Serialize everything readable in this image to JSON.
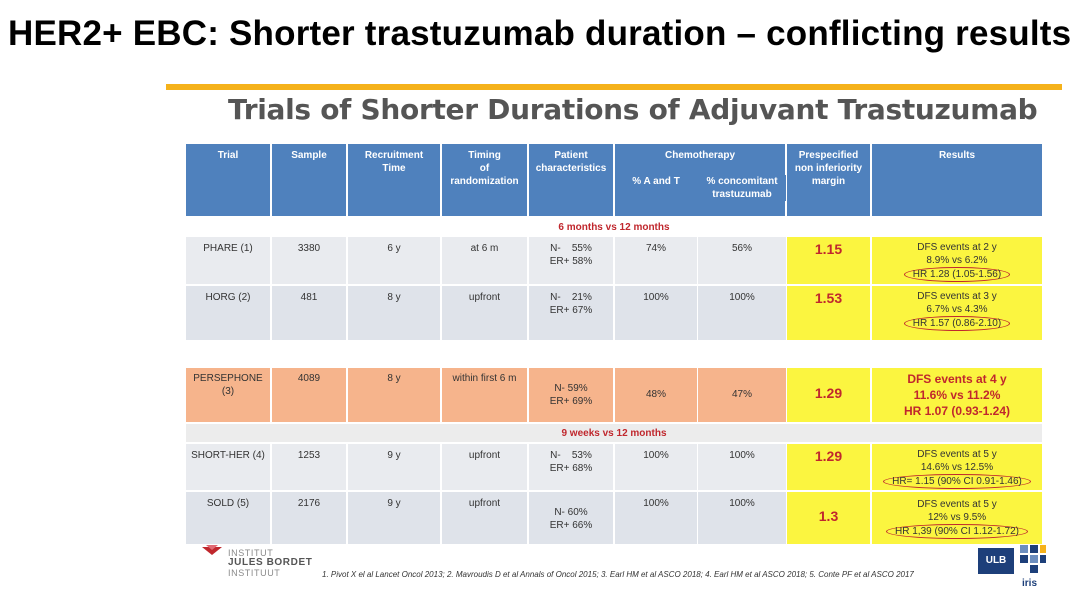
{
  "page_title": "HER2+ EBC: Shorter trastuzumab duration – conflicting results",
  "slide_title": "Trials of Shorter Durations of Adjuvant Trastuzumab",
  "header": {
    "trial": "Trial",
    "sample": "Sample",
    "recruitment": "Recruitment\nTime",
    "timing": "Timing\nof\nrandomization",
    "patient": "Patient\ncharacteristics",
    "chemo": "Chemotherapy",
    "chemo_at": "% A and T",
    "chemo_concomitant": "% concomitant\ntrastuzumab",
    "margin": "Prespecified\nnon inferiority\nmargin",
    "results": "Results"
  },
  "band_1": "6 months vs 12 months",
  "band_2": "9 weeks vs 12 months",
  "rows": {
    "phare": {
      "trial": "PHARE (1)",
      "sample": "3380",
      "recruitment": "6 y",
      "timing": "at 6 m",
      "patient": "N-    55%\nER+ 58%",
      "at": "74%",
      "concomitant": "56%",
      "margin": "1.15",
      "res_line1": "DFS events at 2 y",
      "res_line2": "8.9% vs 6.2%",
      "res_hr": "HR 1.28 (1.05-1.56)"
    },
    "horg": {
      "trial": "HORG (2)",
      "sample": "481",
      "recruitment": "8 y",
      "timing": "upfront",
      "patient": "N-    21%\nER+ 67%",
      "at": "100%",
      "concomitant": "100%",
      "margin": "1.53",
      "res_line1": "DFS events at 3 y",
      "res_line2": "6.7% vs 4.3%",
      "res_hr": "HR 1.57 (0.86-2.10)"
    },
    "persephone": {
      "trial": "PERSEPHONE\n(3)",
      "sample": "4089",
      "recruitment": "8 y",
      "timing": "within first 6 m",
      "patient": "N- 59%\nER+ 69%",
      "at": "48%",
      "concomitant": "47%",
      "margin": "1.29",
      "res_line1": "DFS events at 4 y",
      "res_line2": "11.6% vs 11.2%",
      "res_hr": "HR 1.07 (0.93-1.24)"
    },
    "shorther": {
      "trial": "SHORT-HER (4)",
      "sample": "1253",
      "recruitment": "9 y",
      "timing": "upfront",
      "patient": "N-    53%\nER+ 68%",
      "at": "100%",
      "concomitant": "100%",
      "margin": "1.29",
      "res_line1": "DFS events at 5 y",
      "res_line2": "14.6% vs 12.5%",
      "res_hr": "HR= 1.15 (90% CI 0.91-1.46)"
    },
    "sold": {
      "trial": "SOLD (5)",
      "sample": "2176",
      "recruitment": "9 y",
      "timing": "upfront",
      "patient": "N- 60%\nER+ 66%",
      "at": "100%",
      "concomitant": "100%",
      "margin": "1.3",
      "res_line1": "DFS events at 5 y",
      "res_line2": "12% vs 9.5%",
      "res_hr": "HR 1,39 (90% CI 1.12-1.72)"
    }
  },
  "footer": {
    "institute_line1": "INSTITUT",
    "institute_line2": "JULES BORDET",
    "institute_line3": "INSTITUUT",
    "references": "1. Pivot X el al Lancet Oncol 2013; 2.  Mavroudis D et al Annals of Oncol 2015; 3.  Earl HM et al ASCO 2018; 4. Earl HM et al ASCO 2018; 5.  Conte PF et al ASCO 2017",
    "ulb": "ULB",
    "iris": "iris"
  },
  "colors": {
    "header_blue": "#4f81bd",
    "highlight_yellow": "#fbf540",
    "persephone_orange": "#f6b48c",
    "accent_red": "#c0272d",
    "title_bar_gold": "#f5b21b"
  }
}
